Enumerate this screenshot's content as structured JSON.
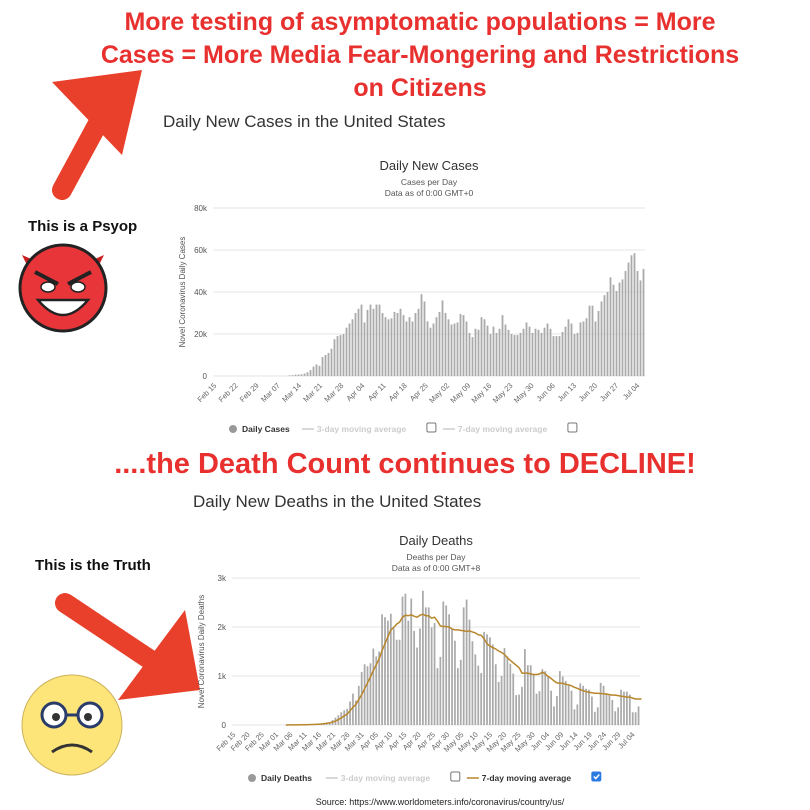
{
  "headline": "More testing of asymptomatic populations = More Cases = More Media Fear-Mongering and Restrictions on Citizens",
  "middle_text": "....the Death Count continues to DECLINE!",
  "side_labels": {
    "psyop": "This is a Psyop",
    "truth": "This is the Truth"
  },
  "source": "Source: https://www.worldometers.info/coronavirus/country/us/",
  "icons": {
    "devil": "devil-emoji-icon",
    "sad": "sad-face-glasses-icon",
    "arrow": "red-arrow-icon"
  },
  "colors": {
    "red": "#e8302f",
    "bar": "#a9a9a9",
    "avg": "#b8862b",
    "check": "#2a7ae2"
  },
  "chart_data": [
    {
      "type": "bar",
      "heading": "Daily New Cases in the United States",
      "title": "Daily New Cases",
      "subtitle1": "Cases per Day",
      "subtitle2": "Data as of 0:00 GMT+0",
      "ylabel": "Novel Coronavirus Daily Cases",
      "ylim": [
        0,
        80000
      ],
      "yticks": [
        "0",
        "20k",
        "40k",
        "60k",
        "80k"
      ],
      "xticks": [
        "Feb 15",
        "Feb 22",
        "Feb 29",
        "Mar 07",
        "Mar 14",
        "Mar 21",
        "Mar 28",
        "Apr 04",
        "Apr 11",
        "Apr 18",
        "Apr 25",
        "May 02",
        "May 09",
        "May 16",
        "May 23",
        "May 30",
        "Jun 06",
        "Jun 13",
        "Jun 20",
        "Jun 27",
        "Jul 04"
      ],
      "legend": [
        {
          "label": "Daily Cases",
          "checked": null
        },
        {
          "label": "3-day moving average",
          "checked": false
        },
        {
          "label": "7-day moving average",
          "checked": false
        }
      ],
      "values_k": [
        0,
        0,
        0,
        0,
        0,
        0,
        0,
        0,
        0,
        0,
        0,
        0,
        0,
        0,
        0,
        0,
        0,
        0,
        0,
        0,
        0,
        0,
        0,
        0,
        0,
        0.3,
        0.4,
        0.6,
        0.7,
        0.8,
        1.2,
        1.8,
        2.8,
        4.5,
        5.5,
        4.8,
        9,
        10,
        11,
        13,
        17.5,
        19,
        19.5,
        20,
        23,
        25,
        27,
        30,
        32,
        34,
        25.5,
        31.5,
        34,
        32,
        34,
        34,
        30,
        28,
        27,
        27.5,
        30.5,
        30,
        32,
        29,
        26,
        28,
        26,
        30,
        32,
        39,
        35.5,
        26,
        23,
        25,
        28,
        30.5,
        36,
        30,
        27,
        24.5,
        25,
        25.5,
        29.5,
        29,
        26,
        20.5,
        18.5,
        22.5,
        22,
        28,
        27,
        24,
        20,
        23.5,
        20.5,
        22.5,
        29,
        24.5,
        22,
        20,
        19.5,
        19.5,
        20.5,
        22.5,
        25.5,
        23.5,
        20.5,
        22.5,
        22,
        20.5,
        23,
        25,
        22.5,
        19,
        19,
        19,
        21,
        23.5,
        27,
        25,
        20,
        20.5,
        25.5,
        26,
        27.5,
        33.5,
        33.5,
        26,
        31,
        35.5,
        38.5,
        40,
        47,
        43.5,
        40.5,
        44.5,
        46,
        50,
        54,
        57.5,
        58.5,
        50,
        45.5,
        51
      ]
    },
    {
      "type": "bar",
      "heading": "Daily New Deaths in the United States",
      "title": "Daily Deaths",
      "subtitle1": "Deaths per Day",
      "subtitle2": "Data as of 0:00 GMT+8",
      "ylabel": "Novel Coronavirus Daily Deaths",
      "ylim": [
        0,
        3000
      ],
      "yticks": [
        "0",
        "1k",
        "2k",
        "3k"
      ],
      "xticks": [
        "Feb 15",
        "Feb 20",
        "Feb 25",
        "Mar 01",
        "Mar 06",
        "Mar 11",
        "Mar 16",
        "Mar 21",
        "Mar 26",
        "Mar 31",
        "Apr 05",
        "Apr 10",
        "Apr 15",
        "Apr 20",
        "Apr 25",
        "Apr 30",
        "May 05",
        "May 10",
        "May 15",
        "May 20",
        "May 25",
        "May 30",
        "Jun 04",
        "Jun 09",
        "Jun 14",
        "Jun 19",
        "Jun 24",
        "Jun 29",
        "Jul 04"
      ],
      "legend": [
        {
          "label": "Daily Deaths",
          "checked": null
        },
        {
          "label": "3-day moving average",
          "checked": false
        },
        {
          "label": "7-day moving average",
          "checked": true
        }
      ],
      "values": [
        0,
        0,
        0,
        0,
        0,
        0,
        0,
        0,
        0,
        0,
        0,
        0,
        0,
        0,
        0,
        0,
        1,
        1,
        2,
        2,
        3,
        4,
        4,
        5,
        8,
        10,
        12,
        15,
        20,
        25,
        30,
        40,
        50,
        60,
        100,
        150,
        200,
        260,
        300,
        330,
        480,
        640,
        500,
        800,
        1080,
        1240,
        1200,
        1260,
        1560,
        1400,
        1500,
        2260,
        2200,
        2130,
        2270,
        1970,
        1740,
        1740,
        2620,
        2680,
        2130,
        2580,
        1920,
        1580,
        1970,
        2740,
        2400,
        2400,
        1990,
        2080,
        1160,
        1390,
        2520,
        2440,
        2260,
        1970,
        1720,
        1160,
        1330,
        2400,
        2560,
        2150,
        1710,
        1440,
        1210,
        1060,
        1900,
        1850,
        1790,
        1640,
        1240,
        880,
        1000,
        1570,
        1400,
        1250,
        1050,
        610,
        620,
        780,
        1550,
        1220,
        1220,
        1020,
        640,
        690,
        1140,
        1100,
        1000,
        700,
        380,
        590,
        1100,
        990,
        900,
        820,
        700,
        320,
        420,
        850,
        800,
        740,
        720,
        580,
        270,
        360,
        860,
        800,
        650,
        620,
        510,
        280,
        360,
        720,
        680,
        680,
        620,
        260,
        260,
        380
      ],
      "avg7": [
        0,
        0,
        0,
        0,
        0,
        0,
        0,
        0,
        0,
        0,
        0,
        0,
        0,
        0,
        0,
        0,
        1,
        1,
        1,
        2,
        2,
        3,
        3,
        4,
        5,
        6,
        8,
        10,
        13,
        17,
        21,
        27,
        35,
        43,
        60,
        80,
        110,
        145,
        185,
        220,
        290,
        360,
        420,
        520,
        620,
        740,
        860,
        980,
        1110,
        1230,
        1350,
        1520,
        1660,
        1800,
        1940,
        1990,
        2060,
        2100,
        2200,
        2240,
        2230,
        2250,
        2220,
        2200,
        2240,
        2260,
        2230,
        2230,
        2180,
        2200,
        2120,
        2020,
        2010,
        2010,
        2000,
        1960,
        1940,
        1940,
        1930,
        1920,
        1910,
        1920,
        1900,
        1880,
        1840,
        1830,
        1760,
        1660,
        1610,
        1580,
        1550,
        1510,
        1480,
        1440,
        1370,
        1320,
        1270,
        1220,
        1170,
        1060,
        1060,
        1060,
        1040,
        1030,
        1030,
        1040,
        1080,
        1040,
        990,
        950,
        900,
        860,
        850,
        850,
        830,
        820,
        800,
        770,
        750,
        720,
        700,
        680,
        670,
        660,
        650,
        650,
        640,
        640,
        630,
        620,
        610,
        610,
        600,
        590,
        580,
        570,
        570,
        550,
        530,
        530,
        530
      ]
    }
  ]
}
